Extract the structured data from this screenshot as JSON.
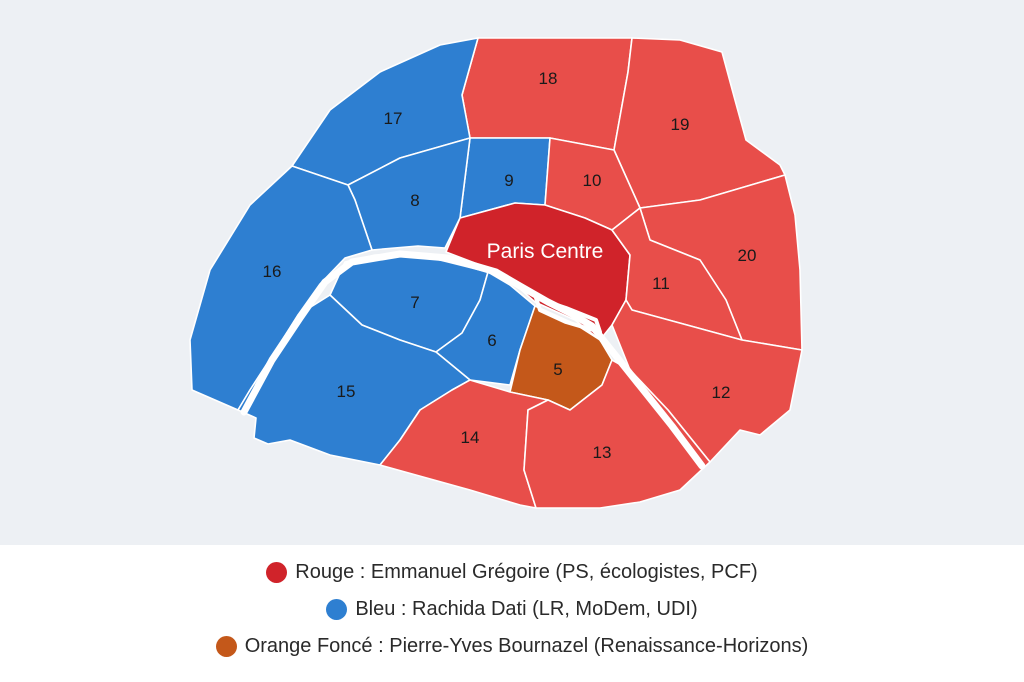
{
  "colors": {
    "rouge": "#e84e4a",
    "rouge_centre": "#d0232a",
    "bleu": "#2e7fd1",
    "orange": "#c4581a",
    "border": "#ffffff",
    "seine": "#ffffff",
    "background": "#edf0f4"
  },
  "map": {
    "arrondissements": [
      {
        "id": "paris-centre",
        "label": "Paris Centre",
        "party": "rouge_centre"
      },
      {
        "id": "5",
        "label": "5",
        "party": "orange"
      },
      {
        "id": "6",
        "label": "6",
        "party": "bleu"
      },
      {
        "id": "7",
        "label": "7",
        "party": "bleu"
      },
      {
        "id": "8",
        "label": "8",
        "party": "bleu"
      },
      {
        "id": "9",
        "label": "9",
        "party": "bleu"
      },
      {
        "id": "10",
        "label": "10",
        "party": "rouge"
      },
      {
        "id": "11",
        "label": "11",
        "party": "rouge"
      },
      {
        "id": "12",
        "label": "12",
        "party": "rouge"
      },
      {
        "id": "13",
        "label": "13",
        "party": "rouge"
      },
      {
        "id": "14",
        "label": "14",
        "party": "rouge"
      },
      {
        "id": "15",
        "label": "15",
        "party": "bleu"
      },
      {
        "id": "16",
        "label": "16",
        "party": "bleu"
      },
      {
        "id": "17",
        "label": "17",
        "party": "bleu"
      },
      {
        "id": "18",
        "label": "18",
        "party": "rouge"
      },
      {
        "id": "19",
        "label": "19",
        "party": "rouge"
      },
      {
        "id": "20",
        "label": "20",
        "party": "rouge"
      }
    ]
  },
  "legend": {
    "rouge": {
      "label": "Rouge : Emmanuel Grégoire (PS, écologistes, PCF)",
      "color": "#d0232a"
    },
    "bleu": {
      "label": "Bleu : Rachida Dati (LR, MoDem, UDI)",
      "color": "#2e7fd1"
    },
    "orange": {
      "label": "Orange Foncé : Pierre-Yves Bournazel (Renaissance-Horizons)",
      "color": "#c4581a"
    }
  }
}
